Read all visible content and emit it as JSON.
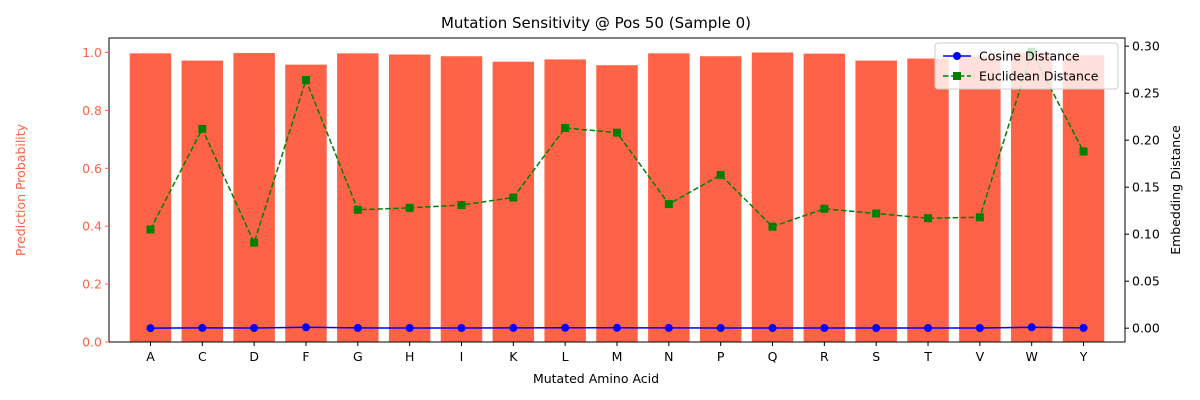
{
  "chart_data": {
    "type": "bar",
    "title": "Mutation Sensitivity @ Pos 50 (Sample 0)",
    "xlabel": "Mutated Amino Acid",
    "ylabel_left": "Prediction Probability",
    "ylabel_right": "Embedding Distance",
    "categories": [
      "A",
      "C",
      "D",
      "F",
      "G",
      "H",
      "I",
      "K",
      "L",
      "M",
      "N",
      "P",
      "Q",
      "R",
      "S",
      "T",
      "V",
      "W",
      "Y"
    ],
    "bar_series": {
      "name": "Prediction Probability",
      "color": "#ff6347",
      "values": [
        0.997,
        0.972,
        0.998,
        0.958,
        0.997,
        0.993,
        0.987,
        0.968,
        0.976,
        0.956,
        0.997,
        0.987,
        1.0,
        0.996,
        0.972,
        0.979,
        0.986,
        1.0,
        0.99
      ]
    },
    "line_series": [
      {
        "name": "Cosine Distance",
        "color": "#0000ff",
        "style": "solid",
        "marker": "circle",
        "values": [
          0.0,
          0.0003,
          0.0002,
          0.001,
          0.0003,
          0.0002,
          0.0002,
          0.0003,
          0.0004,
          0.0004,
          0.0003,
          0.0002,
          0.0002,
          0.0002,
          0.0002,
          0.0002,
          0.0002,
          0.001,
          0.0003
        ]
      },
      {
        "name": "Euclidean Distance",
        "color": "#008000",
        "style": "dashed",
        "marker": "square",
        "values": [
          0.105,
          0.212,
          0.091,
          0.264,
          0.126,
          0.128,
          0.131,
          0.139,
          0.213,
          0.208,
          0.132,
          0.163,
          0.108,
          0.127,
          0.122,
          0.117,
          0.118,
          0.294,
          0.188
        ]
      }
    ],
    "ylim_left": [
      0,
      1.05
    ],
    "ylim_right": [
      -0.0147,
      0.3087
    ],
    "yticks_left": [
      "0.0",
      "0.2",
      "0.4",
      "0.6",
      "0.8",
      "1.0"
    ],
    "yticks_right": [
      "0.00",
      "0.05",
      "0.10",
      "0.15",
      "0.20",
      "0.25",
      "0.30"
    ],
    "left_axis_color": "#ff6347",
    "legend_position": "top-right",
    "grid": false
  }
}
